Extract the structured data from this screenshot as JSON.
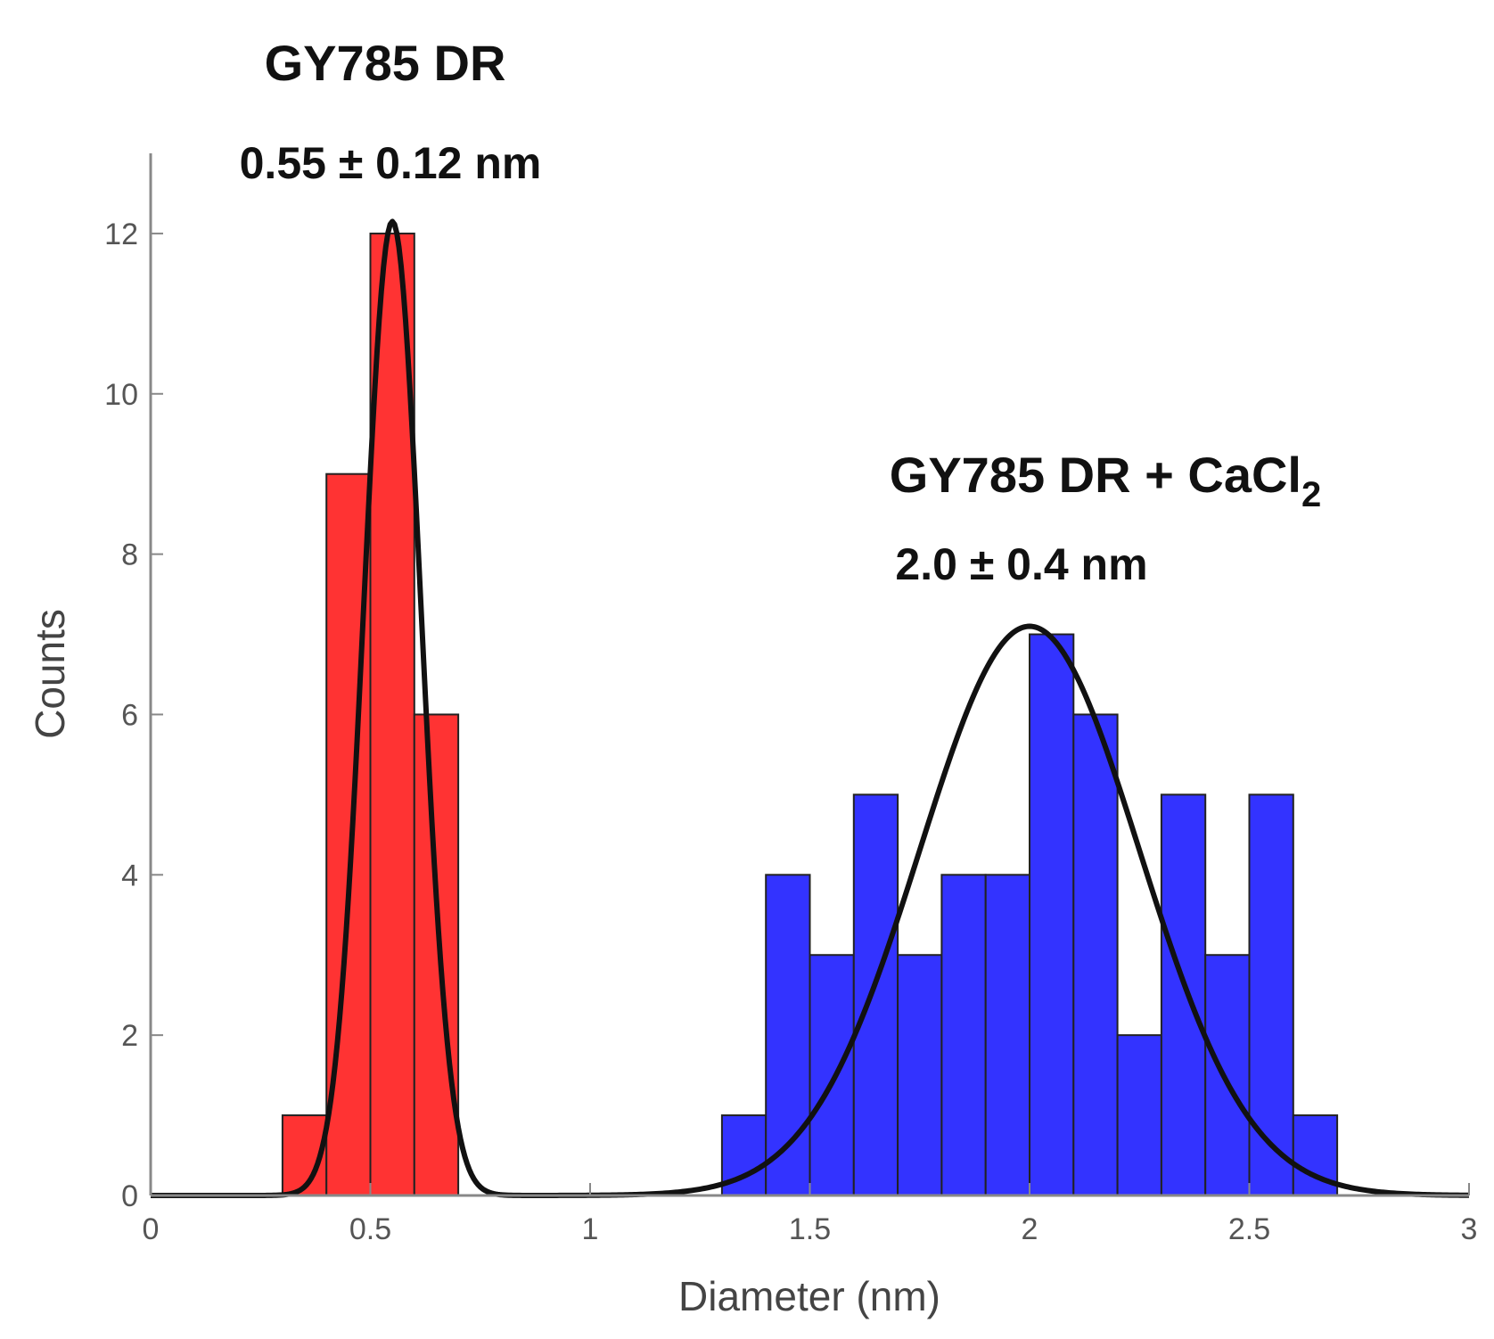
{
  "chart_data": {
    "type": "histogram",
    "xlabel": "Diameter (nm)",
    "ylabel": "Counts",
    "xlim": [
      0,
      3
    ],
    "ylim": [
      0,
      13
    ],
    "x_ticks": [
      "0",
      "0.5",
      "1",
      "1.5",
      "2",
      "2.5",
      "3"
    ],
    "y_ticks": [
      "0",
      "2",
      "4",
      "6",
      "8",
      "10",
      "12"
    ],
    "grid": false,
    "bin_width": 0.1,
    "series": [
      {
        "name": "GY785 DR",
        "color": "#ff3333",
        "bins": [
          {
            "start": 0.3,
            "count": 1
          },
          {
            "start": 0.4,
            "count": 9
          },
          {
            "start": 0.5,
            "count": 12
          },
          {
            "start": 0.6,
            "count": 6
          }
        ],
        "fit": {
          "type": "gaussian",
          "mean": 0.55,
          "sd": 0.065,
          "peak": 12.15
        }
      },
      {
        "name": "GY785 DR + CaCl2",
        "color": "#3333ff",
        "bins": [
          {
            "start": 1.3,
            "count": 1
          },
          {
            "start": 1.4,
            "count": 4
          },
          {
            "start": 1.5,
            "count": 3
          },
          {
            "start": 1.6,
            "count": 5
          },
          {
            "start": 1.7,
            "count": 3
          },
          {
            "start": 1.8,
            "count": 4
          },
          {
            "start": 1.9,
            "count": 4
          },
          {
            "start": 2.0,
            "count": 7
          },
          {
            "start": 2.1,
            "count": 6
          },
          {
            "start": 2.2,
            "count": 2
          },
          {
            "start": 2.3,
            "count": 5
          },
          {
            "start": 2.4,
            "count": 3
          },
          {
            "start": 2.5,
            "count": 5
          },
          {
            "start": 2.6,
            "count": 1
          }
        ],
        "fit": {
          "type": "gaussian",
          "mean": 2.0,
          "sd": 0.25,
          "peak": 7.1
        }
      }
    ],
    "annotations": {
      "series1_title": "GY785 DR",
      "series1_value": "0.55 ± 0.12 nm",
      "series2_title_main": "GY785 DR + CaCl",
      "series2_title_sub": "2",
      "series2_value": "2.0 ± 0.4 nm"
    }
  }
}
